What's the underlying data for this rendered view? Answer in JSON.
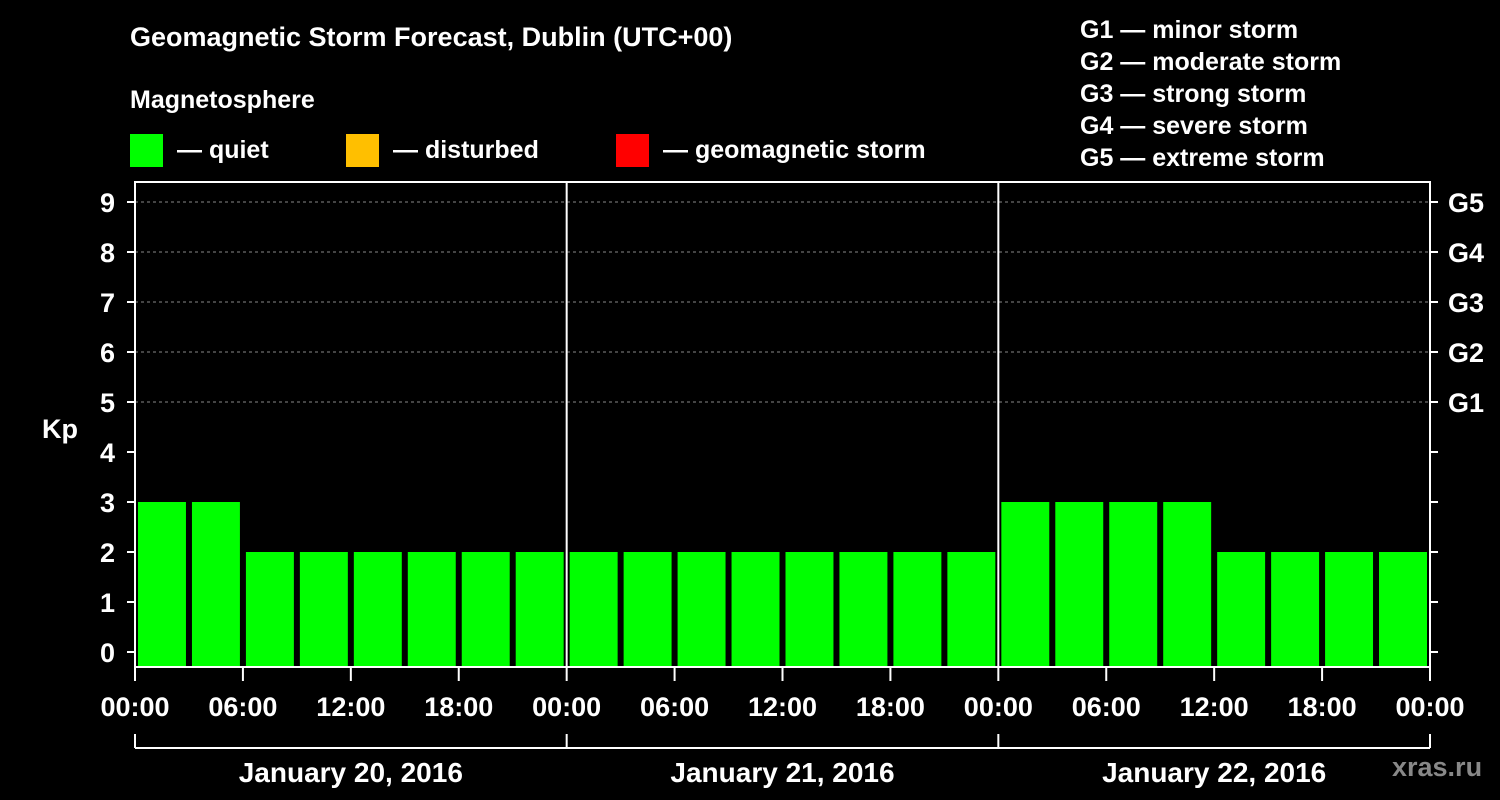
{
  "chart_data": {
    "type": "bar",
    "title": "Geomagnetic Storm Forecast, Dublin (UTC+00)",
    "subtitle": "Magnetosphere",
    "ylabel": "Kp",
    "ylim": [
      0,
      9
    ],
    "yticks": [
      "0",
      "1",
      "2",
      "3",
      "4",
      "5",
      "6",
      "7",
      "8",
      "9"
    ],
    "right_axis_labels": [
      {
        "kp": 5,
        "label": "G1"
      },
      {
        "kp": 6,
        "label": "G2"
      },
      {
        "kp": 7,
        "label": "G3"
      },
      {
        "kp": 8,
        "label": "G4"
      },
      {
        "kp": 9,
        "label": "G5"
      }
    ],
    "xtick_labels": [
      "00:00",
      "06:00",
      "12:00",
      "18:00",
      "00:00",
      "06:00",
      "12:00",
      "18:00",
      "00:00",
      "06:00",
      "12:00",
      "18:00",
      "00:00"
    ],
    "days": [
      "January 20, 2016",
      "January 21, 2016",
      "January 22, 2016"
    ],
    "bars_per_day": 8,
    "values": [
      3,
      3,
      2,
      2,
      2,
      2,
      2,
      2,
      2,
      2,
      2,
      2,
      2,
      2,
      2,
      2,
      3,
      3,
      3,
      3,
      2,
      2,
      2,
      2
    ],
    "thresholds": {
      "disturbed": 4,
      "storm": 5
    }
  },
  "legend": {
    "quiet": {
      "label": "— quiet",
      "color": "#00ff00"
    },
    "disturbed": {
      "label": "— disturbed",
      "color": "#ffbf00"
    },
    "storm": {
      "label": "— geomagnetic storm",
      "color": "#ff0000"
    }
  },
  "glevels": [
    "G1 — minor storm",
    "G2 — moderate storm",
    "G3 — strong storm",
    "G4 — severe storm",
    "G5 — extreme storm"
  ],
  "watermark": "xras.ru"
}
